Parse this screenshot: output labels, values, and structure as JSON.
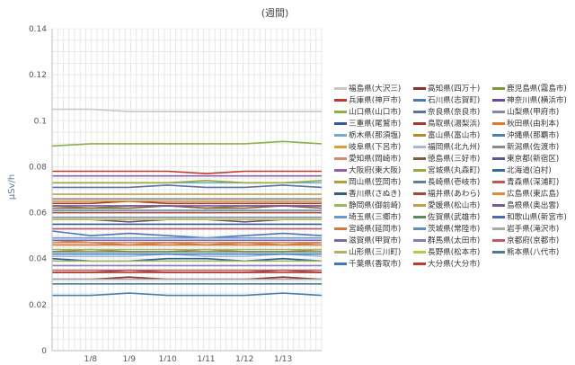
{
  "chart_data": {
    "type": "line",
    "title": "(週間)",
    "ylabel": "μSv/h",
    "xlabel": "",
    "ylim": [
      0,
      0.14
    ],
    "yticks": [
      0,
      0.02,
      0.04,
      0.06,
      0.08,
      0.1,
      0.12,
      0.14
    ],
    "ytick_labels": [
      "0",
      "0.02",
      "0.04",
      "0.06",
      "0.08",
      "0.1",
      "0.12",
      "0.14"
    ],
    "x_range": [
      "1/7",
      "1/14"
    ],
    "x_tick_labels": [
      "1/8",
      "1/9",
      "1/10",
      "1/11",
      "1/12",
      "1/13"
    ],
    "grid": true,
    "legend_position": "right",
    "series": [
      {
        "name": "福島県(大沢三)",
        "color": "#c7c7c7",
        "values": [
          0.105,
          0.105,
          0.104,
          0.104,
          0.104,
          0.104,
          0.104,
          0.104
        ]
      },
      {
        "name": "高知県(四万十)",
        "color": "#8b2f2f",
        "values": [
          0.031,
          0.031,
          0.032,
          0.031,
          0.031,
          0.031,
          0.032,
          0.031
        ]
      },
      {
        "name": "鹿児島県(霧島市)",
        "color": "#7a9a36",
        "values": [
          0.063,
          0.062,
          0.063,
          0.063,
          0.062,
          0.063,
          0.063,
          0.063
        ]
      },
      {
        "name": "兵庫県(神戸市)",
        "color": "#c0392b",
        "values": [
          0.078,
          0.078,
          0.078,
          0.078,
          0.077,
          0.078,
          0.078,
          0.078
        ]
      },
      {
        "name": "石川県(志賀町)",
        "color": "#4a7ab5",
        "values": [
          0.052,
          0.05,
          0.051,
          0.05,
          0.049,
          0.05,
          0.051,
          0.05
        ]
      },
      {
        "name": "神奈川県(横浜市)",
        "color": "#6a4a9c",
        "values": [
          0.057,
          0.057,
          0.056,
          0.057,
          0.057,
          0.056,
          0.057,
          0.057
        ]
      },
      {
        "name": "山口県(山口市)",
        "color": "#8db04a",
        "values": [
          0.089,
          0.09,
          0.09,
          0.09,
          0.09,
          0.09,
          0.091,
          0.09
        ]
      },
      {
        "name": "奈良県(奈良市)",
        "color": "#5a72a8",
        "values": [
          0.071,
          0.071,
          0.071,
          0.072,
          0.071,
          0.071,
          0.072,
          0.071
        ]
      },
      {
        "name": "山梨県(甲府市)",
        "color": "#7f8aa8",
        "values": [
          0.058,
          0.058,
          0.058,
          0.058,
          0.058,
          0.058,
          0.058,
          0.058
        ]
      },
      {
        "name": "三重県(尾鷲市)",
        "color": "#2f5d9e",
        "values": [
          0.04,
          0.039,
          0.039,
          0.04,
          0.04,
          0.039,
          0.04,
          0.039
        ]
      },
      {
        "name": "鳥取県(湯梨浜)",
        "color": "#a43a2a",
        "values": [
          0.064,
          0.064,
          0.065,
          0.064,
          0.064,
          0.064,
          0.064,
          0.064
        ]
      },
      {
        "name": "秋田県(由利本)",
        "color": "#e07a2a",
        "values": [
          0.048,
          0.047,
          0.046,
          0.047,
          0.046,
          0.047,
          0.046,
          0.047
        ]
      },
      {
        "name": "栃木県(那須塩)",
        "color": "#6ab0c8",
        "values": [
          0.073,
          0.073,
          0.073,
          0.073,
          0.073,
          0.073,
          0.073,
          0.073
        ]
      },
      {
        "name": "富山県(富山市)",
        "color": "#b38a2a",
        "values": [
          0.043,
          0.044,
          0.043,
          0.043,
          0.044,
          0.043,
          0.043,
          0.044
        ]
      },
      {
        "name": "沖縄県(那覇市)",
        "color": "#4f7fb8",
        "values": [
          0.024,
          0.024,
          0.025,
          0.024,
          0.024,
          0.024,
          0.025,
          0.024
        ]
      },
      {
        "name": "岐阜県(下呂市)",
        "color": "#e59a3a",
        "values": [
          0.061,
          0.061,
          0.061,
          0.061,
          0.061,
          0.061,
          0.061,
          0.061
        ]
      },
      {
        "name": "福岡県(北九州)",
        "color": "#a6b8d8",
        "values": [
          0.041,
          0.041,
          0.041,
          0.042,
          0.041,
          0.041,
          0.042,
          0.041
        ]
      },
      {
        "name": "新潟県(佐渡市)",
        "color": "#8a8a8a",
        "values": [
          0.066,
          0.066,
          0.066,
          0.066,
          0.066,
          0.066,
          0.066,
          0.066
        ]
      },
      {
        "name": "愛知県(岡崎市)",
        "color": "#d58a6a",
        "values": [
          0.047,
          0.047,
          0.047,
          0.047,
          0.047,
          0.047,
          0.047,
          0.047
        ]
      },
      {
        "name": "徳島県(三好市)",
        "color": "#7f5f3a",
        "values": [
          0.062,
          0.062,
          0.062,
          0.063,
          0.062,
          0.062,
          0.063,
          0.062
        ]
      },
      {
        "name": "東京都(新宿区)",
        "color": "#5a5a8a",
        "values": [
          0.034,
          0.034,
          0.035,
          0.034,
          0.034,
          0.034,
          0.035,
          0.034
        ]
      },
      {
        "name": "大阪府(東大阪)",
        "color": "#8f5fa8",
        "values": [
          0.076,
          0.076,
          0.076,
          0.076,
          0.076,
          0.076,
          0.076,
          0.076
        ]
      },
      {
        "name": "宮城県(丸森町)",
        "color": "#9aaa3a",
        "values": [
          0.073,
          0.073,
          0.073,
          0.073,
          0.074,
          0.073,
          0.073,
          0.074
        ]
      },
      {
        "name": "北海道(泊村)",
        "color": "#3a6a9a",
        "values": [
          0.031,
          0.031,
          0.031,
          0.031,
          0.031,
          0.031,
          0.031,
          0.031
        ]
      },
      {
        "name": "岡山県(笠岡市)",
        "color": "#b0a03a",
        "values": [
          0.046,
          0.046,
          0.046,
          0.046,
          0.046,
          0.046,
          0.046,
          0.046
        ]
      },
      {
        "name": "長崎県(壱岐市)",
        "color": "#5f7f9a",
        "values": [
          0.053,
          0.053,
          0.053,
          0.053,
          0.053,
          0.053,
          0.053,
          0.053
        ]
      },
      {
        "name": "青森県(深浦町)",
        "color": "#c05a4a",
        "values": [
          0.035,
          0.035,
          0.035,
          0.035,
          0.035,
          0.035,
          0.035,
          0.035
        ]
      },
      {
        "name": "香川県(さぬき)",
        "color": "#3a5a8a",
        "values": [
          0.055,
          0.055,
          0.055,
          0.055,
          0.055,
          0.055,
          0.055,
          0.055
        ]
      },
      {
        "name": "福井県(あわら)",
        "color": "#a6463a",
        "values": [
          0.06,
          0.06,
          0.06,
          0.06,
          0.06,
          0.06,
          0.06,
          0.06
        ]
      },
      {
        "name": "広島県(東広島)",
        "color": "#e08a3a",
        "values": [
          0.065,
          0.065,
          0.065,
          0.065,
          0.065,
          0.065,
          0.065,
          0.065
        ]
      },
      {
        "name": "静岡県(御前崎)",
        "color": "#9ab85a",
        "values": [
          0.039,
          0.039,
          0.039,
          0.039,
          0.039,
          0.039,
          0.039,
          0.039
        ]
      },
      {
        "name": "愛媛県(松山市)",
        "color": "#c0a04a",
        "values": [
          0.068,
          0.068,
          0.068,
          0.068,
          0.068,
          0.068,
          0.068,
          0.068
        ]
      },
      {
        "name": "島根県(奥出雲)",
        "color": "#7a5a9a",
        "values": [
          0.063,
          0.063,
          0.063,
          0.063,
          0.063,
          0.063,
          0.063,
          0.063
        ]
      },
      {
        "name": "埼玉県(三郷市)",
        "color": "#6a9ac8",
        "values": [
          0.049,
          0.049,
          0.049,
          0.049,
          0.049,
          0.049,
          0.049,
          0.049
        ]
      },
      {
        "name": "佐賀県(武雄市)",
        "color": "#5a8a5a",
        "values": [
          0.043,
          0.043,
          0.043,
          0.043,
          0.043,
          0.043,
          0.043,
          0.043
        ]
      },
      {
        "name": "和歌山県(新宮市)",
        "color": "#4a6aa8",
        "values": [
          0.057,
          0.057,
          0.057,
          0.057,
          0.057,
          0.057,
          0.057,
          0.057
        ]
      },
      {
        "name": "宮崎県(延岡市)",
        "color": "#d07a3a",
        "values": [
          0.046,
          0.046,
          0.046,
          0.046,
          0.046,
          0.046,
          0.046,
          0.046
        ]
      },
      {
        "name": "茨城県(常陸市)",
        "color": "#5f8fb8",
        "values": [
          0.061,
          0.061,
          0.061,
          0.061,
          0.061,
          0.061,
          0.061,
          0.061
        ]
      },
      {
        "name": "岩手県(滝沢市)",
        "color": "#a8a8a8",
        "values": [
          0.031,
          0.031,
          0.031,
          0.031,
          0.031,
          0.031,
          0.031,
          0.031
        ]
      },
      {
        "name": "滋賀県(甲賀市)",
        "color": "#7a6ab0",
        "values": [
          0.048,
          0.048,
          0.048,
          0.048,
          0.048,
          0.048,
          0.048,
          0.048
        ]
      },
      {
        "name": "群馬県(太田市)",
        "color": "#8a7ab8",
        "values": [
          0.037,
          0.037,
          0.037,
          0.037,
          0.037,
          0.037,
          0.037,
          0.037
        ]
      },
      {
        "name": "京都府(京都市)",
        "color": "#c05a6a",
        "values": [
          0.053,
          0.053,
          0.053,
          0.053,
          0.053,
          0.053,
          0.053,
          0.053
        ]
      },
      {
        "name": "山形県(三川町)",
        "color": "#b0b06a",
        "values": [
          0.044,
          0.044,
          0.044,
          0.044,
          0.044,
          0.044,
          0.044,
          0.044
        ]
      },
      {
        "name": "長野県(松本市)",
        "color": "#b8c84a",
        "values": [
          0.057,
          0.057,
          0.057,
          0.057,
          0.057,
          0.057,
          0.057,
          0.057
        ]
      },
      {
        "name": "熊本県(八代市)",
        "color": "#4a7a9a",
        "values": [
          0.029,
          0.029,
          0.029,
          0.029,
          0.029,
          0.029,
          0.029,
          0.029
        ]
      },
      {
        "name": "千葉県(香取市)",
        "color": "#3a7ac0",
        "values": [
          0.042,
          0.042,
          0.042,
          0.042,
          0.042,
          0.042,
          0.042,
          0.042
        ]
      },
      {
        "name": "大分県(大分市)",
        "color": "#c0392b",
        "values": [
          0.034,
          0.034,
          0.034,
          0.034,
          0.034,
          0.034,
          0.034,
          0.034
        ]
      }
    ]
  }
}
